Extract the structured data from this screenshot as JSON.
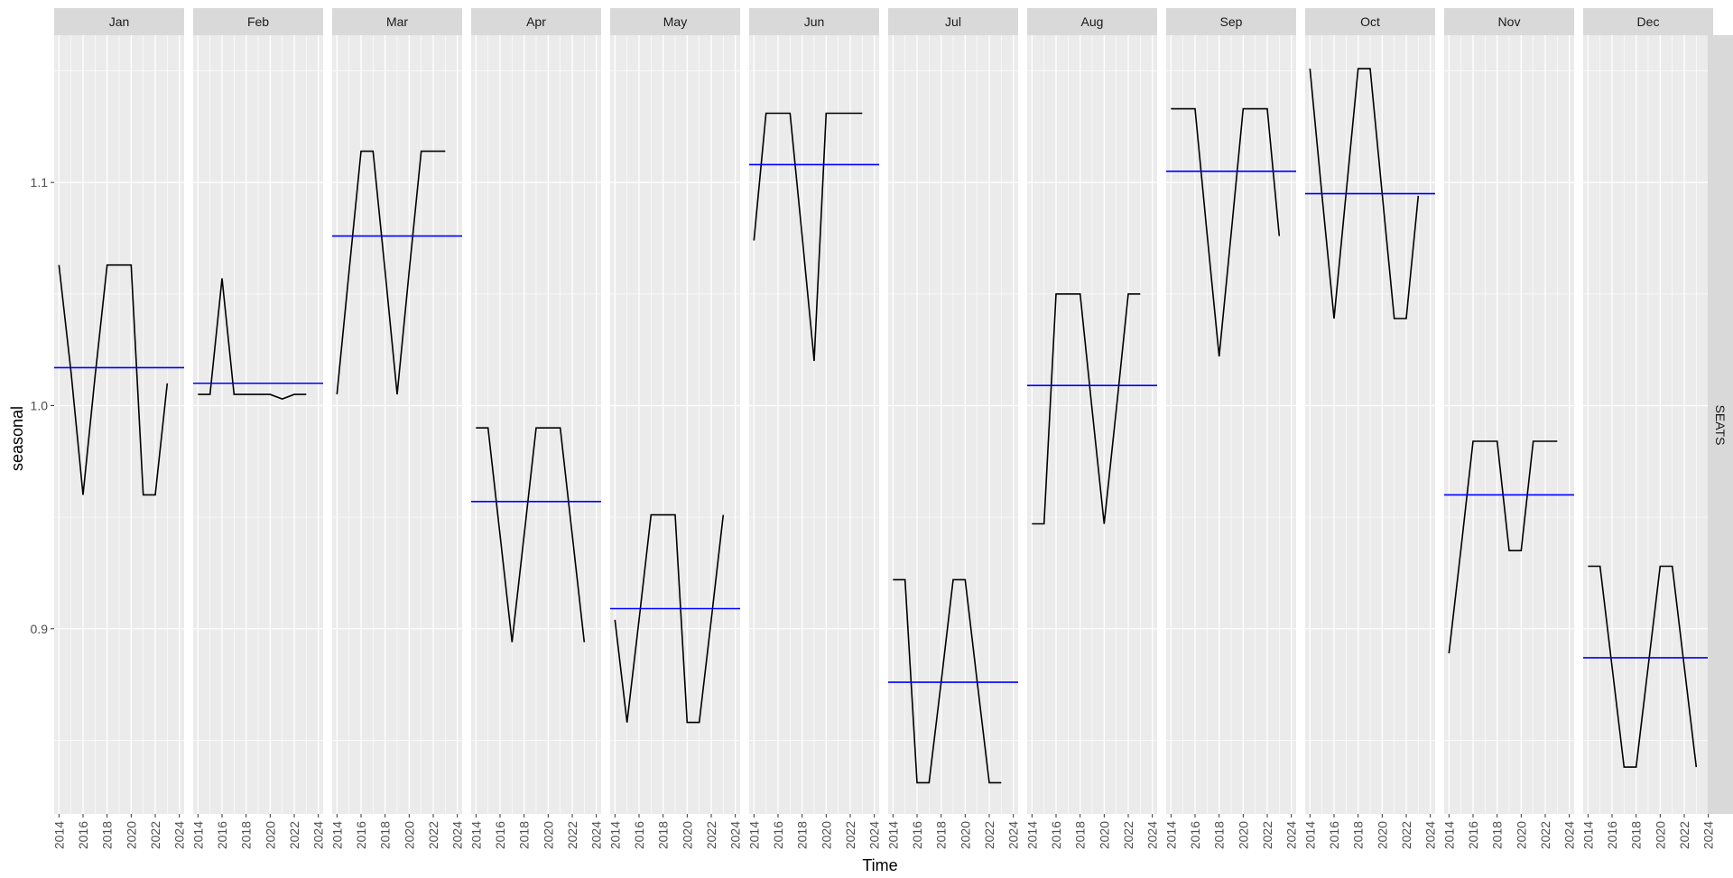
{
  "chart_data": {
    "type": "line",
    "description_kind": "seasonal subseries plot",
    "ylabel": "seasonal",
    "xlabel": "Time",
    "row_strip": "SEATS",
    "ylim": [
      0.817,
      1.166
    ],
    "y_ticks": [
      0.9,
      1.0,
      1.1
    ],
    "y_tick_labels": [
      "0.9",
      "1.0",
      "1.1"
    ],
    "xlim": [
      2013.6,
      2024.4
    ],
    "x_ticks": [
      2014,
      2016,
      2018,
      2020,
      2022,
      2024
    ],
    "x_tick_labels": [
      "2014",
      "2016",
      "2018",
      "2020",
      "2022",
      "2024"
    ],
    "colors": {
      "panel_bg": "#ebebeb",
      "strip_bg": "#d9d9d9",
      "grid": "#ffffff",
      "series": "#000000",
      "mean_line": "#0000ff"
    },
    "panels": [
      {
        "month": "Jan",
        "years": [
          2014,
          2015,
          2016,
          2017,
          2018,
          2019,
          2020,
          2021,
          2022,
          2023
        ],
        "values": [
          1.063,
          1.015,
          0.96,
          1.013,
          1.063,
          1.063,
          1.063,
          0.96,
          0.96,
          1.01
        ],
        "mean": 1.017
      },
      {
        "month": "Feb",
        "years": [
          2014,
          2015,
          2016,
          2017,
          2018,
          2019,
          2020,
          2021,
          2022,
          2023
        ],
        "values": [
          1.005,
          1.005,
          1.057,
          1.005,
          1.005,
          1.005,
          1.005,
          1.003,
          1.005,
          1.005
        ],
        "mean": 1.01
      },
      {
        "month": "Mar",
        "years": [
          2014,
          2015,
          2016,
          2017,
          2018,
          2019,
          2020,
          2021,
          2022,
          2023
        ],
        "values": [
          1.005,
          1.06,
          1.114,
          1.114,
          1.06,
          1.005,
          1.06,
          1.114,
          1.114,
          1.114
        ],
        "mean": 1.076
      },
      {
        "month": "Apr",
        "years": [
          2014,
          2015,
          2016,
          2017,
          2018,
          2019,
          2020,
          2021,
          2022,
          2023
        ],
        "values": [
          0.99,
          0.99,
          0.942,
          0.894,
          0.942,
          0.99,
          0.99,
          0.99,
          0.942,
          0.894
        ],
        "mean": 0.957
      },
      {
        "month": "May",
        "years": [
          2014,
          2015,
          2016,
          2017,
          2018,
          2019,
          2020,
          2021,
          2022,
          2023
        ],
        "values": [
          0.904,
          0.858,
          0.904,
          0.951,
          0.951,
          0.951,
          0.858,
          0.858,
          0.904,
          0.951
        ],
        "mean": 0.909
      },
      {
        "month": "Jun",
        "years": [
          2014,
          2015,
          2016,
          2017,
          2018,
          2019,
          2020,
          2021,
          2022,
          2023
        ],
        "values": [
          1.074,
          1.131,
          1.131,
          1.131,
          1.076,
          1.02,
          1.131,
          1.131,
          1.131,
          1.131
        ],
        "mean": 1.108
      },
      {
        "month": "Jul",
        "years": [
          2014,
          2015,
          2016,
          2017,
          2018,
          2019,
          2020,
          2021,
          2022,
          2023
        ],
        "values": [
          0.922,
          0.922,
          0.831,
          0.831,
          0.876,
          0.922,
          0.922,
          0.876,
          0.831,
          0.831
        ],
        "mean": 0.876
      },
      {
        "month": "Aug",
        "years": [
          2014,
          2015,
          2016,
          2017,
          2018,
          2019,
          2020,
          2021,
          2022,
          2023
        ],
        "values": [
          0.947,
          0.947,
          1.05,
          1.05,
          1.05,
          0.998,
          0.947,
          0.998,
          1.05,
          1.05
        ],
        "mean": 1.009
      },
      {
        "month": "Sep",
        "years": [
          2014,
          2015,
          2016,
          2017,
          2018,
          2019,
          2020,
          2021,
          2022,
          2023
        ],
        "values": [
          1.133,
          1.133,
          1.133,
          1.077,
          1.022,
          1.077,
          1.133,
          1.133,
          1.133,
          1.076
        ],
        "mean": 1.105
      },
      {
        "month": "Oct",
        "years": [
          2014,
          2015,
          2016,
          2017,
          2018,
          2019,
          2020,
          2021,
          2022,
          2023
        ],
        "values": [
          1.151,
          1.094,
          1.039,
          1.095,
          1.151,
          1.151,
          1.095,
          1.039,
          1.039,
          1.094
        ],
        "mean": 1.095
      },
      {
        "month": "Nov",
        "years": [
          2014,
          2015,
          2016,
          2017,
          2018,
          2019,
          2020,
          2021,
          2022,
          2023
        ],
        "values": [
          0.889,
          0.936,
          0.984,
          0.984,
          0.984,
          0.935,
          0.935,
          0.984,
          0.984,
          0.984
        ],
        "mean": 0.96
      },
      {
        "month": "Dec",
        "years": [
          2014,
          2015,
          2016,
          2017,
          2018,
          2019,
          2020,
          2021,
          2022,
          2023
        ],
        "values": [
          0.928,
          0.928,
          0.883,
          0.838,
          0.838,
          0.883,
          0.928,
          0.928,
          0.883,
          0.838
        ],
        "mean": 0.887
      }
    ]
  }
}
